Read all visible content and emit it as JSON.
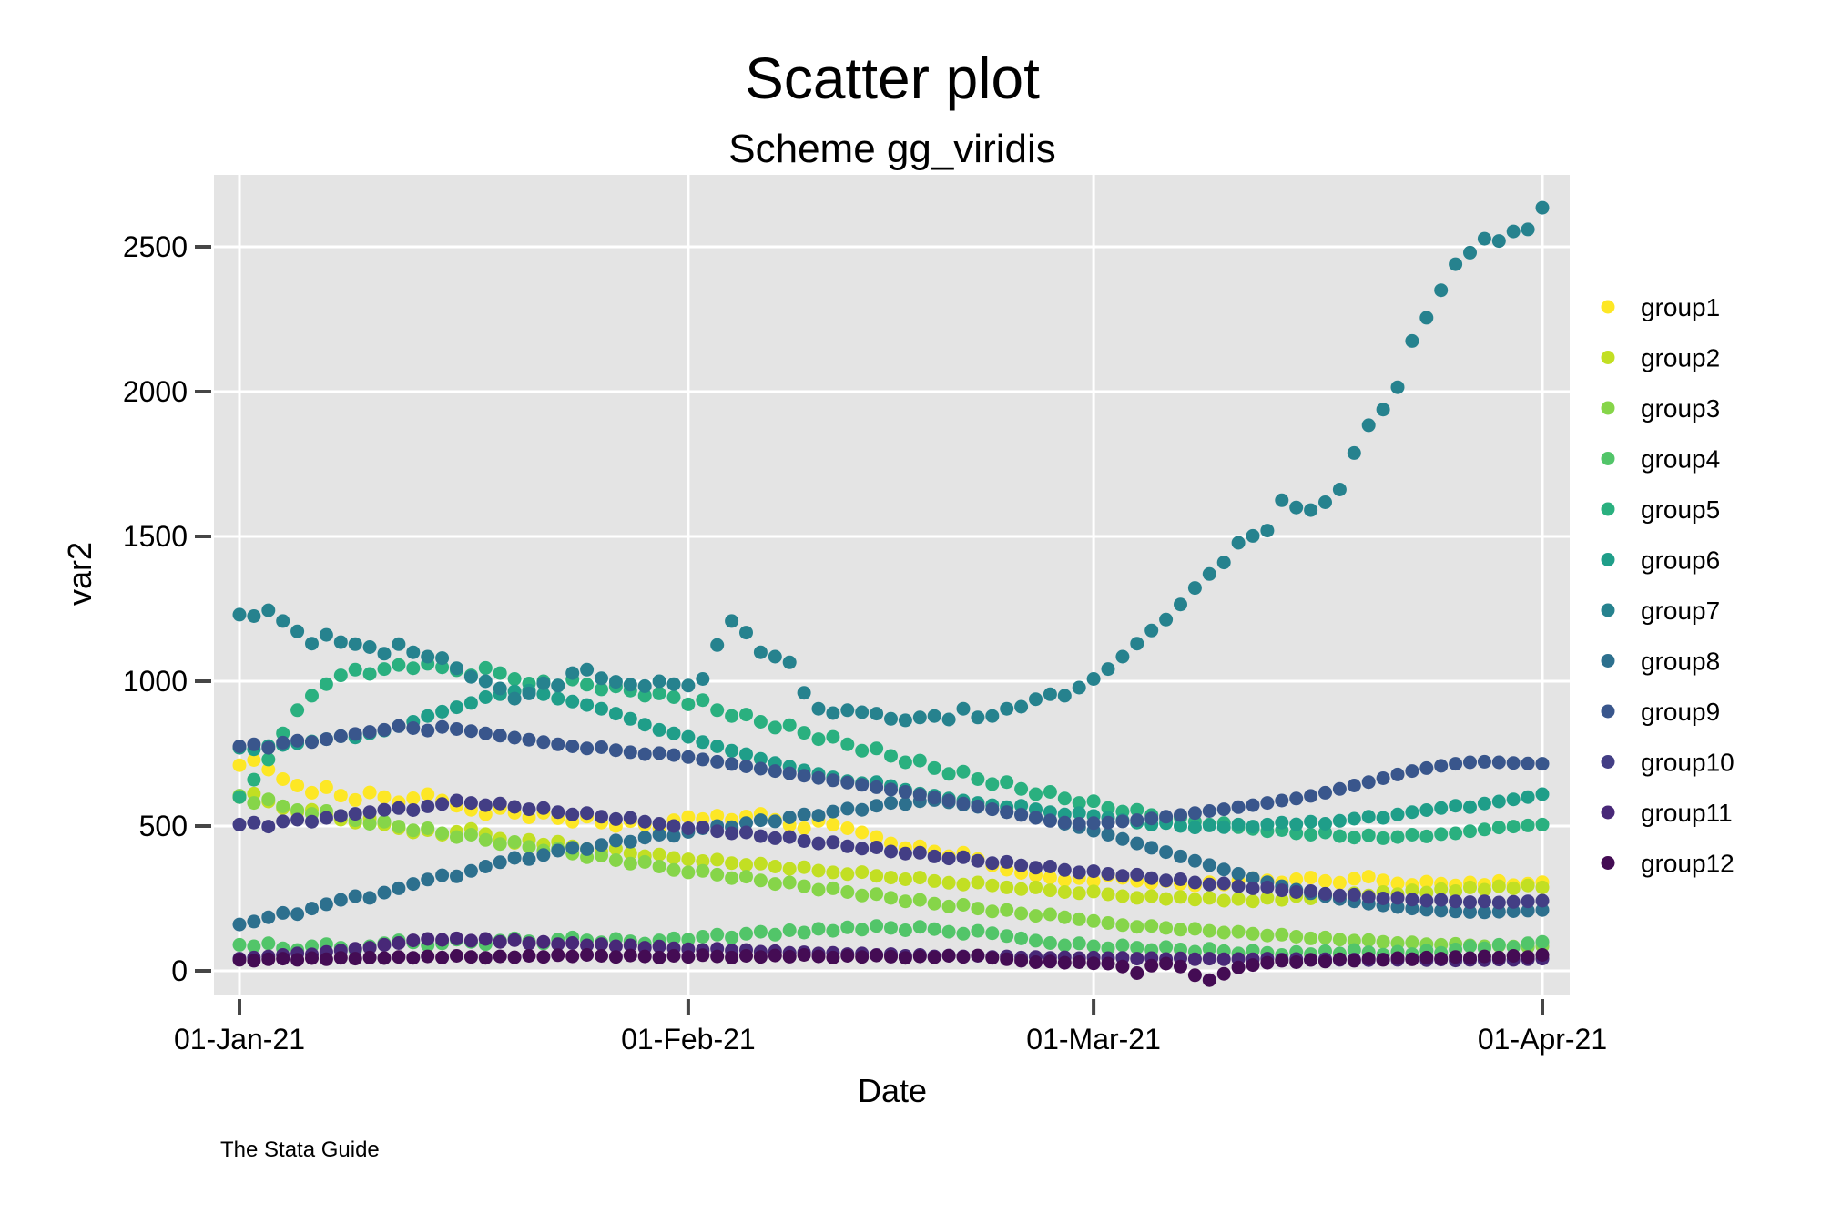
{
  "title": "Scatter plot",
  "subtitle": "Scheme gg_viridis",
  "caption": "The Stata Guide",
  "axes": {
    "x": {
      "label": "Date",
      "tick_labels": [
        "01-Jan-21",
        "01-Feb-21",
        "01-Mar-21",
        "01-Apr-21"
      ],
      "tick_days": [
        0,
        31,
        59,
        90
      ]
    },
    "y": {
      "label": "var2",
      "tick_labels": [
        "0",
        "500",
        "1000",
        "1500",
        "2000",
        "2500"
      ],
      "tick_values": [
        0,
        500,
        1000,
        1500,
        2000,
        2500
      ]
    }
  },
  "colors": {
    "plot_bg": "#E4E4E4",
    "grid": "#FFFFFF",
    "tick": "#464646",
    "text": "#000000",
    "background": "#FFFFFF"
  },
  "legend": {
    "items": [
      {
        "label": "group1",
        "color": "#FDE725"
      },
      {
        "label": "group2",
        "color": "#C2DF23"
      },
      {
        "label": "group3",
        "color": "#86D549"
      },
      {
        "label": "group4",
        "color": "#52C569"
      },
      {
        "label": "group5",
        "color": "#2AB07F"
      },
      {
        "label": "group6",
        "color": "#1F9E89"
      },
      {
        "label": "group7",
        "color": "#26828E"
      },
      {
        "label": "group8",
        "color": "#2D708E"
      },
      {
        "label": "group9",
        "color": "#39568C"
      },
      {
        "label": "group10",
        "color": "#433E85"
      },
      {
        "label": "group11",
        "color": "#482878"
      },
      {
        "label": "group12",
        "color": "#440C54"
      }
    ]
  },
  "chart_data": {
    "type": "scatter",
    "title": "Scatter plot",
    "subtitle": "Scheme gg_viridis",
    "xlabel": "Date",
    "ylabel": "var2",
    "x_unit": "days since 01-Jan-21, one point per day",
    "x_range": [
      0,
      90
    ],
    "ylim": [
      -85,
      2750
    ],
    "grid": "white major gridlines on gray panel",
    "legend_position": "right",
    "series": [
      {
        "name": "group1",
        "color": "#FDE725",
        "values": [
          710,
          728,
          695,
          662,
          640,
          615,
          634,
          605,
          590,
          616,
          600,
          582,
          596,
          610,
          588,
          570,
          556,
          541,
          562,
          546,
          530,
          546,
          527,
          515,
          532,
          512,
          500,
          517,
          505,
          494,
          520,
          531,
          524,
          536,
          521,
          533,
          542,
          521,
          503,
          492,
          518,
          505,
          492,
          478,
          462,
          440,
          424,
          430,
          412,
          396,
          408,
          386,
          364,
          349,
          338,
          330,
          322,
          313,
          320,
          310,
          330,
          321,
          311,
          304,
          310,
          301,
          295,
          306,
          298,
          311,
          320,
          312,
          305,
          316,
          322,
          310,
          304,
          318,
          325,
          312,
          302,
          297,
          308,
          301,
          295,
          305,
          297,
          310,
          296,
          301,
          306
        ]
      },
      {
        "name": "group2",
        "color": "#C2DF23",
        "values": [
          600,
          612,
          585,
          562,
          548,
          556,
          540,
          522,
          512,
          526,
          506,
          492,
          478,
          486,
          470,
          480,
          490,
          472,
          456,
          442,
          452,
          436,
          446,
          430,
          420,
          412,
          422,
          406,
          396,
          402,
          390,
          385,
          379,
          384,
          372,
          366,
          370,
          360,
          352,
          358,
          346,
          340,
          334,
          341,
          328,
          322,
          316,
          322,
          310,
          304,
          298,
          305,
          295,
          288,
          282,
          288,
          278,
          272,
          268,
          274,
          264,
          258,
          252,
          258,
          248,
          255,
          246,
          252,
          242,
          248,
          240,
          252,
          245,
          258,
          250,
          262,
          255,
          268,
          260,
          272,
          265,
          278,
          270,
          282,
          275,
          288,
          280,
          292,
          285,
          295,
          288
        ]
      },
      {
        "name": "group3",
        "color": "#86D549",
        "values": [
          605,
          580,
          592,
          568,
          555,
          542,
          552,
          535,
          520,
          508,
          515,
          498,
          485,
          492,
          475,
          462,
          470,
          452,
          438,
          445,
          428,
          415,
          422,
          405,
          392,
          398,
          382,
          370,
          376,
          360,
          348,
          340,
          345,
          332,
          320,
          325,
          312,
          300,
          305,
          292,
          280,
          285,
          272,
          260,
          265,
          252,
          240,
          245,
          232,
          222,
          228,
          215,
          205,
          210,
          198,
          190,
          195,
          185,
          178,
          172,
          165,
          158,
          152,
          155,
          148,
          142,
          145,
          138,
          132,
          135,
          128,
          122,
          125,
          118,
          112,
          115,
          108,
          104,
          106,
          100,
          96,
          98,
          92,
          90,
          93,
          88,
          85,
          87,
          84,
          82,
          85
        ]
      },
      {
        "name": "group4",
        "color": "#52C569",
        "values": [
          90,
          85,
          95,
          78,
          72,
          85,
          92,
          80,
          72,
          85,
          95,
          105,
          98,
          88,
          95,
          108,
          100,
          92,
          104,
          112,
          102,
          95,
          108,
          115,
          105,
          98,
          110,
          102,
          94,
          105,
          112,
          108,
          118,
          125,
          115,
          128,
          135,
          125,
          140,
          132,
          145,
          138,
          150,
          142,
          155,
          148,
          140,
          152,
          144,
          135,
          128,
          138,
          130,
          120,
          112,
          104,
          96,
          88,
          95,
          85,
          78,
          88,
          80,
          72,
          82,
          74,
          66,
          76,
          68,
          60,
          70,
          62,
          55,
          65,
          58,
          68,
          60,
          72,
          64,
          56,
          66,
          58,
          70,
          62,
          74,
          85,
          78,
          90,
          82,
          95,
          100
        ]
      },
      {
        "name": "group5",
        "color": "#2AB07F",
        "values": [
          600,
          660,
          730,
          820,
          900,
          950,
          990,
          1020,
          1040,
          1025,
          1042,
          1056,
          1045,
          1060,
          1048,
          1038,
          1020,
          1046,
          1028,
          1008,
          992,
          1000,
          985,
          1006,
          988,
          972,
          982,
          968,
          950,
          958,
          945,
          920,
          935,
          900,
          880,
          885,
          860,
          840,
          848,
          822,
          800,
          808,
          782,
          760,
          768,
          742,
          720,
          726,
          700,
          680,
          688,
          662,
          645,
          652,
          628,
          610,
          618,
          595,
          580,
          586,
          562,
          550,
          556,
          538,
          525,
          530,
          515,
          505,
          510,
          496,
          490,
          482,
          486,
          475,
          470,
          478,
          465,
          460,
          468,
          458,
          462,
          470,
          464,
          472,
          475,
          482,
          488,
          495,
          498,
          502,
          505
        ]
      },
      {
        "name": "group6",
        "color": "#1F9E89",
        "values": [
          770,
          765,
          776,
          780,
          786,
          792,
          800,
          810,
          806,
          820,
          830,
          845,
          860,
          880,
          895,
          910,
          925,
          945,
          955,
          965,
          968,
          955,
          940,
          930,
          918,
          905,
          888,
          870,
          850,
          832,
          820,
          808,
          790,
          775,
          760,
          748,
          732,
          718,
          705,
          692,
          680,
          668,
          655,
          648,
          652,
          638,
          625,
          612,
          605,
          595,
          588,
          580,
          572,
          565,
          570,
          558,
          548,
          540,
          545,
          535,
          528,
          520,
          512,
          505,
          510,
          500,
          495,
          502,
          496,
          505,
          498,
          505,
          512,
          506,
          515,
          508,
          518,
          525,
          532,
          528,
          540,
          548,
          555,
          562,
          570,
          565,
          578,
          585,
          592,
          600,
          610
        ]
      },
      {
        "name": "group7",
        "color": "#26828E",
        "values": [
          1230,
          1225,
          1245,
          1208,
          1172,
          1130,
          1160,
          1135,
          1128,
          1118,
          1095,
          1128,
          1100,
          1085,
          1080,
          1045,
          1015,
          1000,
          975,
          940,
          958,
          993,
          985,
          1028,
          1040,
          1010,
          998,
          988,
          983,
          1000,
          990,
          985,
          1008,
          1125,
          1208,
          1168,
          1100,
          1085,
          1065,
          960,
          905,
          890,
          900,
          893,
          888,
          870,
          865,
          875,
          880,
          868,
          905,
          875,
          880,
          905,
          912,
          938,
          955,
          950,
          978,
          1008,
          1042,
          1085,
          1130,
          1175,
          1213,
          1265,
          1322,
          1370,
          1410,
          1478,
          1502,
          1520,
          1625,
          1600,
          1591,
          1618,
          1662,
          1788,
          1884,
          1938,
          2015,
          2175,
          2255,
          2350,
          2440,
          2480,
          2528,
          2520,
          2553,
          2560,
          2635
        ]
      },
      {
        "name": "group8",
        "color": "#2D708E",
        "values": [
          160,
          170,
          185,
          200,
          196,
          215,
          230,
          245,
          258,
          252,
          270,
          285,
          300,
          315,
          330,
          326,
          345,
          360,
          375,
          390,
          386,
          400,
          415,
          425,
          420,
          435,
          450,
          446,
          460,
          470,
          466,
          480,
          492,
          500,
          496,
          510,
          520,
          516,
          530,
          540,
          536,
          550,
          560,
          556,
          570,
          580,
          576,
          586,
          590,
          582,
          574,
          566,
          558,
          548,
          540,
          530,
          520,
          508,
          496,
          484,
          470,
          455,
          440,
          425,
          410,
          395,
          380,
          365,
          350,
          335,
          320,
          306,
          292,
          280,
          268,
          258,
          248,
          240,
          232,
          226,
          220,
          215,
          211,
          208,
          205,
          203,
          202,
          204,
          206,
          208,
          210
        ]
      },
      {
        "name": "group9",
        "color": "#39568C",
        "values": [
          775,
          782,
          770,
          788,
          795,
          790,
          800,
          810,
          818,
          825,
          832,
          845,
          838,
          830,
          842,
          835,
          828,
          820,
          812,
          805,
          798,
          790,
          782,
          775,
          768,
          772,
          762,
          755,
          748,
          752,
          745,
          738,
          730,
          722,
          714,
          706,
          698,
          690,
          682,
          674,
          666,
          658,
          650,
          642,
          634,
          626,
          618,
          608,
          598,
          588,
          578,
          568,
          558,
          548,
          538,
          528,
          518,
          512,
          508,
          510,
          512,
          516,
          520,
          526,
          532,
          538,
          545,
          552,
          558,
          565,
          572,
          580,
          588,
          595,
          604,
          615,
          628,
          640,
          652,
          665,
          678,
          690,
          700,
          708,
          715,
          720,
          722,
          720,
          718,
          716,
          715
        ]
      },
      {
        "name": "group10",
        "color": "#433E85",
        "values": [
          505,
          512,
          498,
          516,
          522,
          515,
          528,
          535,
          542,
          548,
          556,
          562,
          555,
          568,
          576,
          588,
          580,
          572,
          578,
          566,
          558,
          562,
          548,
          540,
          545,
          532,
          524,
          528,
          515,
          508,
          500,
          492,
          495,
          482,
          475,
          478,
          465,
          458,
          462,
          448,
          440,
          444,
          430,
          422,
          426,
          412,
          405,
          408,
          395,
          388,
          392,
          380,
          372,
          376,
          364,
          356,
          360,
          348,
          340,
          344,
          335,
          328,
          332,
          320,
          312,
          316,
          305,
          298,
          302,
          292,
          285,
          288,
          278,
          272,
          275,
          266,
          260,
          263,
          255,
          250,
          252,
          246,
          242,
          245,
          240,
          237,
          240,
          236,
          238,
          240,
          242
        ]
      },
      {
        "name": "group11",
        "color": "#482878",
        "values": [
          42,
          46,
          50,
          55,
          60,
          57,
          65,
          70,
          76,
          80,
          90,
          96,
          105,
          110,
          107,
          112,
          104,
          110,
          100,
          106,
          95,
          100,
          92,
          96,
          88,
          92,
          85,
          88,
          80,
          84,
          78,
          75,
          72,
          76,
          70,
          72,
          66,
          68,
          62,
          64,
          60,
          62,
          58,
          60,
          55,
          58,
          52,
          55,
          50,
          53,
          50,
          52,
          48,
          50,
          46,
          48,
          45,
          47,
          44,
          46,
          44,
          45,
          42,
          44,
          41,
          43,
          40,
          42,
          40,
          41,
          40,
          42,
          39,
          41,
          38,
          40,
          38,
          39,
          37,
          39,
          38,
          40,
          37,
          39,
          36,
          38,
          37,
          39,
          38,
          40,
          42
        ]
      },
      {
        "name": "group12",
        "color": "#440C54",
        "values": [
          38,
          35,
          40,
          42,
          38,
          44,
          40,
          45,
          42,
          46,
          44,
          48,
          45,
          50,
          46,
          52,
          48,
          45,
          50,
          47,
          52,
          48,
          54,
          50,
          55,
          52,
          48,
          53,
          50,
          46,
          52,
          48,
          54,
          50,
          46,
          52,
          48,
          53,
          49,
          55,
          50,
          46,
          52,
          48,
          53,
          49,
          45,
          50,
          47,
          52,
          48,
          53,
          45,
          40,
          35,
          30,
          32,
          28,
          30,
          26,
          25,
          15,
          -8,
          18,
          25,
          15,
          -15,
          -32,
          -10,
          12,
          20,
          28,
          35,
          30,
          38,
          32,
          40,
          35,
          42,
          38,
          44,
          40,
          46,
          42,
          48,
          44,
          50,
          46,
          52,
          48,
          55
        ]
      }
    ]
  }
}
